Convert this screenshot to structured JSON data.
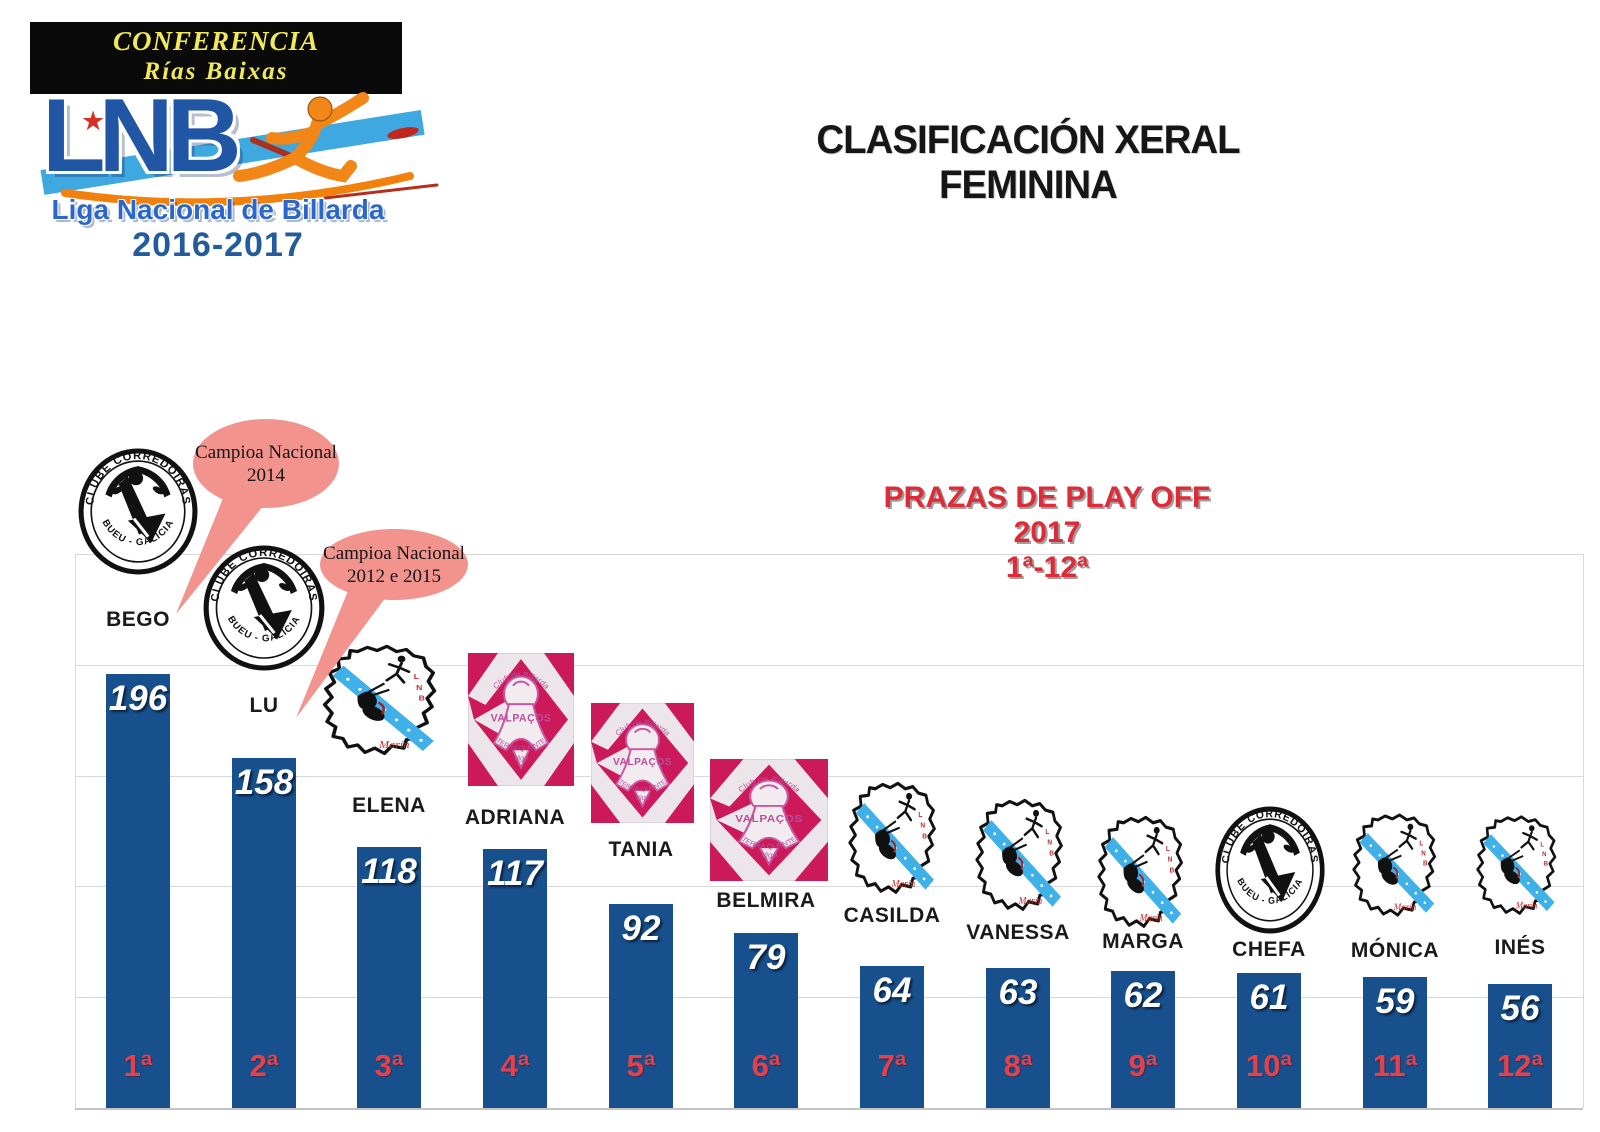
{
  "header": {
    "banner_line1": "CONFERENCIA",
    "banner_line2": "Rías Baixas",
    "logo_acronym": "LNB",
    "league_name": "Liga Nacional de Billarda",
    "season": "2016-2017",
    "page_title": "CLASIFICACIÓN XERAL FEMININA"
  },
  "playoff_note": {
    "line1": "PRAZAS DE PLAY OFF 2017",
    "line2": "1ª-12ª"
  },
  "callouts": [
    {
      "line1": "Campioa Nacional",
      "line2": "2014",
      "target": "BEGO"
    },
    {
      "line1": "Campioa Nacional",
      "line2": "2012 e 2015",
      "target": "LU"
    }
  ],
  "logos": {
    "corredoiras": {
      "arc_top": "CLUBE CORREDOIRAS",
      "arc_bottom": "BUEU - GALICIA"
    },
    "valpacos": {
      "arc_top": "Club de Billarda",
      "name": "VALPAÇOS",
      "arc_bottom": "TERRA QUENTE",
      "city": "Vigo"
    },
    "marin": {
      "initials": "LNB",
      "town": "Marín"
    }
  },
  "chart_data": {
    "type": "bar",
    "title": "CLASIFICACIÓN XERAL FEMININA",
    "categories": [
      "BEGO",
      "LU",
      "ELENA",
      "ADRIANA",
      "TANIA",
      "BELMIRA",
      "CASILDA",
      "VANESSA",
      "MARGA",
      "CHEFA",
      "MÓNICA",
      "INÉS"
    ],
    "values": [
      196,
      158,
      118,
      117,
      92,
      79,
      64,
      63,
      62,
      61,
      59,
      56
    ],
    "ranks": [
      "1ª",
      "2ª",
      "3ª",
      "4ª",
      "5ª",
      "6ª",
      "7ª",
      "8ª",
      "9ª",
      "10ª",
      "11ª",
      "12ª"
    ],
    "clubs": [
      "corredoiras",
      "corredoiras",
      "marin",
      "valpacos",
      "valpacos",
      "valpacos",
      "marin",
      "marin",
      "marin",
      "corredoiras",
      "marin",
      "marin"
    ],
    "xlabel": "",
    "ylabel": "",
    "ylim": [
      0,
      250
    ],
    "grid_step": 50,
    "grid": true,
    "legend_position": "none",
    "bar_color": "#17508C",
    "value_label_color": "#FFFFFF",
    "rank_label_color": "#E8404A"
  },
  "colors": {
    "bar_blue": "#17508C",
    "rank_red": "#E8404A",
    "heading_red": "#DE2B38",
    "bubble_pink": "#F2938D",
    "valpacos_crimson": "#CB195A",
    "band_light_blue": "#3FB0E8",
    "lnb_blue": "#2156A5",
    "league_blue": "#2B66CC",
    "season_blue": "#235C9C",
    "banner_yellow": "#F0E95A",
    "figure_orange": "#F28718",
    "gridline_gray": "#D9D9D9"
  }
}
